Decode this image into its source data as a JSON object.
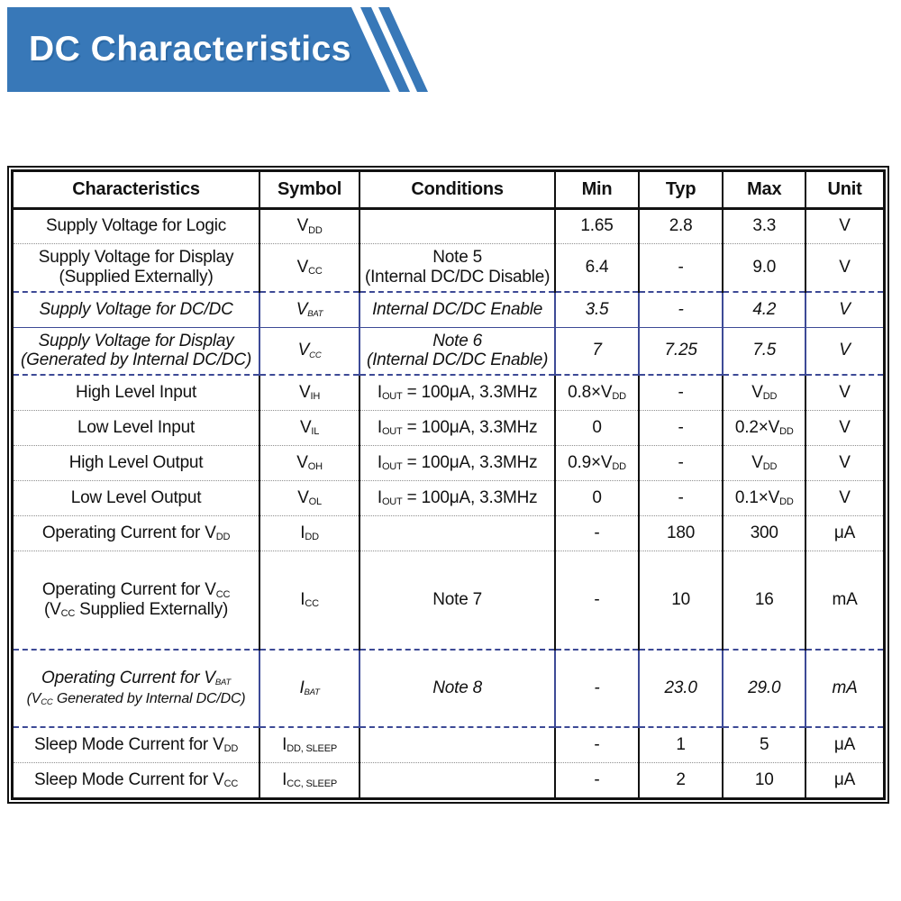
{
  "banner": {
    "title": "DC Characteristics"
  },
  "colors": {
    "banner_blue": "#3878b8",
    "table_border": "#111111",
    "dotted_separator": "#8f8f8f",
    "blue_separator": "#3d4a96",
    "text": "#111111",
    "background": "#ffffff"
  },
  "table": {
    "columns": [
      "Characteristics",
      "Symbol",
      "Conditions",
      "Min",
      "Typ",
      "Max",
      "Unit"
    ],
    "rows": [
      {
        "characteristic": [
          [
            {
              "t": "Supply Voltage for Logic"
            }
          ]
        ],
        "symbol": [
          [
            {
              "t": "V"
            },
            {
              "t": "DD",
              "sub": true
            }
          ]
        ],
        "conditions": [],
        "min": [
          [
            {
              "t": "1.65"
            }
          ]
        ],
        "typ": [
          [
            {
              "t": "2.8"
            }
          ]
        ],
        "max": [
          [
            {
              "t": "3.3"
            }
          ]
        ],
        "unit": [
          [
            {
              "t": "V"
            }
          ]
        ],
        "italic": false,
        "blue_borders": false,
        "separator_after": "dotted"
      },
      {
        "characteristic": [
          [
            {
              "t": "Supply Voltage for Display"
            }
          ],
          [
            {
              "t": "(Supplied Externally)"
            }
          ]
        ],
        "symbol": [
          [
            {
              "t": "V"
            },
            {
              "t": "CC",
              "sub": true
            }
          ]
        ],
        "conditions": [
          [
            {
              "t": "Note 5"
            }
          ],
          [
            {
              "t": "(Internal DC/DC Disable)"
            }
          ]
        ],
        "min": [
          [
            {
              "t": "6.4"
            }
          ]
        ],
        "typ": [
          [
            {
              "t": "-"
            }
          ]
        ],
        "max": [
          [
            {
              "t": "9.0"
            }
          ]
        ],
        "unit": [
          [
            {
              "t": "V"
            }
          ]
        ],
        "italic": false,
        "blue_borders": false,
        "separator_after": "bluedash"
      },
      {
        "characteristic": [
          [
            {
              "t": "Supply Voltage for DC/DC"
            }
          ]
        ],
        "symbol": [
          [
            {
              "t": "V"
            },
            {
              "t": "BAT",
              "sub": true
            }
          ]
        ],
        "conditions": [
          [
            {
              "t": "Internal DC/DC Enable"
            }
          ]
        ],
        "min": [
          [
            {
              "t": "3.5"
            }
          ]
        ],
        "typ": [
          [
            {
              "t": "-"
            }
          ]
        ],
        "max": [
          [
            {
              "t": "4.2"
            }
          ]
        ],
        "unit": [
          [
            {
              "t": "V"
            }
          ]
        ],
        "italic": true,
        "blue_borders": true,
        "separator_after": "bluesolid"
      },
      {
        "characteristic": [
          [
            {
              "t": "Supply Voltage for Display"
            }
          ],
          [
            {
              "t": "(Generated by Internal DC/DC)"
            }
          ]
        ],
        "symbol": [
          [
            {
              "t": "V"
            },
            {
              "t": "CC",
              "sub": true
            }
          ]
        ],
        "conditions": [
          [
            {
              "t": "Note 6"
            }
          ],
          [
            {
              "t": "(Internal DC/DC Enable)"
            }
          ]
        ],
        "min": [
          [
            {
              "t": "7"
            }
          ]
        ],
        "typ": [
          [
            {
              "t": "7.25"
            }
          ]
        ],
        "max": [
          [
            {
              "t": "7.5"
            }
          ]
        ],
        "unit": [
          [
            {
              "t": "V"
            }
          ]
        ],
        "italic": true,
        "blue_borders": true,
        "separator_after": "bluedash"
      },
      {
        "characteristic": [
          [
            {
              "t": "High Level Input"
            }
          ]
        ],
        "symbol": [
          [
            {
              "t": "V"
            },
            {
              "t": "IH",
              "sub": true
            }
          ]
        ],
        "conditions": [
          [
            {
              "t": "I"
            },
            {
              "t": "OUT",
              "sub": true
            },
            {
              "t": " = 100μA, 3.3MHz"
            }
          ]
        ],
        "min": [
          [
            {
              "t": "0.8×V"
            },
            {
              "t": "DD",
              "sub": true
            }
          ]
        ],
        "typ": [
          [
            {
              "t": "-"
            }
          ]
        ],
        "max": [
          [
            {
              "t": "V"
            },
            {
              "t": "DD",
              "sub": true
            }
          ]
        ],
        "unit": [
          [
            {
              "t": "V"
            }
          ]
        ],
        "italic": false,
        "blue_borders": false,
        "separator_after": "dotted"
      },
      {
        "characteristic": [
          [
            {
              "t": "Low Level Input"
            }
          ]
        ],
        "symbol": [
          [
            {
              "t": "V"
            },
            {
              "t": "IL",
              "sub": true
            }
          ]
        ],
        "conditions": [
          [
            {
              "t": "I"
            },
            {
              "t": "OUT",
              "sub": true
            },
            {
              "t": " = 100μA, 3.3MHz"
            }
          ]
        ],
        "min": [
          [
            {
              "t": "0"
            }
          ]
        ],
        "typ": [
          [
            {
              "t": "-"
            }
          ]
        ],
        "max": [
          [
            {
              "t": "0.2×V"
            },
            {
              "t": "DD",
              "sub": true
            }
          ]
        ],
        "unit": [
          [
            {
              "t": "V"
            }
          ]
        ],
        "italic": false,
        "blue_borders": false,
        "separator_after": "dotted"
      },
      {
        "characteristic": [
          [
            {
              "t": "High Level Output"
            }
          ]
        ],
        "symbol": [
          [
            {
              "t": "V"
            },
            {
              "t": "OH",
              "sub": true
            }
          ]
        ],
        "conditions": [
          [
            {
              "t": "I"
            },
            {
              "t": "OUT",
              "sub": true
            },
            {
              "t": " = 100μA, 3.3MHz"
            }
          ]
        ],
        "min": [
          [
            {
              "t": "0.9×V"
            },
            {
              "t": "DD",
              "sub": true
            }
          ]
        ],
        "typ": [
          [
            {
              "t": "-"
            }
          ]
        ],
        "max": [
          [
            {
              "t": "V"
            },
            {
              "t": "DD",
              "sub": true
            }
          ]
        ],
        "unit": [
          [
            {
              "t": "V"
            }
          ]
        ],
        "italic": false,
        "blue_borders": false,
        "separator_after": "dotted"
      },
      {
        "characteristic": [
          [
            {
              "t": "Low Level Output"
            }
          ]
        ],
        "symbol": [
          [
            {
              "t": "V"
            },
            {
              "t": "OL",
              "sub": true
            }
          ]
        ],
        "conditions": [
          [
            {
              "t": "I"
            },
            {
              "t": "OUT",
              "sub": true
            },
            {
              "t": " = 100μA, 3.3MHz"
            }
          ]
        ],
        "min": [
          [
            {
              "t": "0"
            }
          ]
        ],
        "typ": [
          [
            {
              "t": "-"
            }
          ]
        ],
        "max": [
          [
            {
              "t": "0.1×V"
            },
            {
              "t": "DD",
              "sub": true
            }
          ]
        ],
        "unit": [
          [
            {
              "t": "V"
            }
          ]
        ],
        "italic": false,
        "blue_borders": false,
        "separator_after": "dotted"
      },
      {
        "characteristic": [
          [
            {
              "t": "Operating Current for V"
            },
            {
              "t": "DD",
              "sub": true
            }
          ]
        ],
        "symbol": [
          [
            {
              "t": "I"
            },
            {
              "t": "DD",
              "sub": true
            }
          ]
        ],
        "conditions": [],
        "min": [
          [
            {
              "t": "-"
            }
          ]
        ],
        "typ": [
          [
            {
              "t": "180"
            }
          ]
        ],
        "max": [
          [
            {
              "t": "300"
            }
          ]
        ],
        "unit": [
          [
            {
              "t": "μA"
            }
          ]
        ],
        "italic": false,
        "blue_borders": false,
        "separator_after": "dotted"
      },
      {
        "characteristic": [
          [
            {
              "t": "Operating Current for V"
            },
            {
              "t": "CC",
              "sub": true
            }
          ],
          [
            {
              "t": "(V"
            },
            {
              "t": "CC",
              "sub": true
            },
            {
              "t": " Supplied Externally)"
            }
          ]
        ],
        "symbol": [
          [
            {
              "t": "I"
            },
            {
              "t": "CC",
              "sub": true
            }
          ]
        ],
        "conditions": [
          [
            {
              "t": "Note 7"
            }
          ]
        ],
        "min": [
          [
            {
              "t": "-"
            }
          ]
        ],
        "typ": [
          [
            {
              "t": "10"
            }
          ]
        ],
        "max": [
          [
            {
              "t": "16"
            }
          ]
        ],
        "unit": [
          [
            {
              "t": "mA"
            }
          ]
        ],
        "italic": false,
        "blue_borders": false,
        "separator_after": "bluedash"
      },
      {
        "characteristic": [
          [
            {
              "t": "Operating Current for V"
            },
            {
              "t": "BAT",
              "sub": true
            }
          ],
          [
            {
              "t": "(V",
              "small": true
            },
            {
              "t": "CC",
              "sub": true,
              "small": true
            },
            {
              "t": " Generated by Internal DC/DC)",
              "small": true
            }
          ]
        ],
        "symbol": [
          [
            {
              "t": "I"
            },
            {
              "t": "BAT",
              "sub": true
            }
          ]
        ],
        "conditions": [
          [
            {
              "t": "Note 8"
            }
          ]
        ],
        "min": [
          [
            {
              "t": "-"
            }
          ]
        ],
        "typ": [
          [
            {
              "t": "23.0"
            }
          ]
        ],
        "max": [
          [
            {
              "t": "29.0"
            }
          ]
        ],
        "unit": [
          [
            {
              "t": "mA"
            }
          ]
        ],
        "italic": true,
        "blue_borders": true,
        "separator_after": "bluedash"
      },
      {
        "characteristic": [
          [
            {
              "t": "Sleep Mode Current for V"
            },
            {
              "t": "DD",
              "sub": true
            }
          ]
        ],
        "symbol": [
          [
            {
              "t": "I"
            },
            {
              "t": "DD, SLEEP",
              "sub": true
            }
          ]
        ],
        "conditions": [],
        "min": [
          [
            {
              "t": "-"
            }
          ]
        ],
        "typ": [
          [
            {
              "t": "1"
            }
          ]
        ],
        "max": [
          [
            {
              "t": "5"
            }
          ]
        ],
        "unit": [
          [
            {
              "t": "μA"
            }
          ]
        ],
        "italic": false,
        "blue_borders": false,
        "separator_after": "dotted"
      },
      {
        "characteristic": [
          [
            {
              "t": "Sleep Mode Current for V"
            },
            {
              "t": "CC",
              "sub": true
            }
          ]
        ],
        "symbol": [
          [
            {
              "t": "I"
            },
            {
              "t": "CC, SLEEP",
              "sub": true
            }
          ]
        ],
        "conditions": [],
        "min": [
          [
            {
              "t": "-"
            }
          ]
        ],
        "typ": [
          [
            {
              "t": "2"
            }
          ]
        ],
        "max": [
          [
            {
              "t": "10"
            }
          ]
        ],
        "unit": [
          [
            {
              "t": "μA"
            }
          ]
        ],
        "italic": false,
        "blue_borders": false,
        "separator_after": "none"
      }
    ]
  }
}
